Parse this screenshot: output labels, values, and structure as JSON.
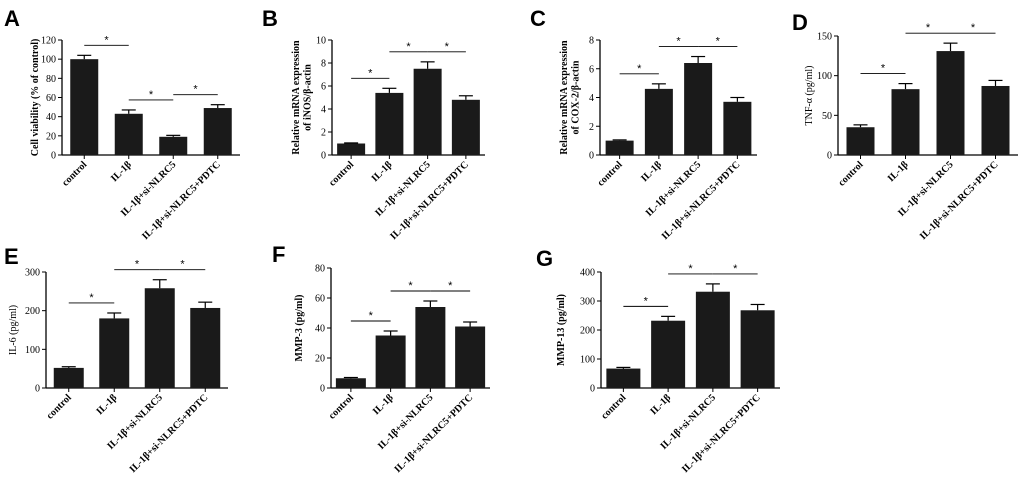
{
  "chart_data": [
    {
      "panel": "A",
      "type": "bar",
      "ylabel": "Cell viability (% of control)",
      "categories": [
        "control",
        "IL-1β",
        "IL-1β+si-NLRC5",
        "IL-1β+si-NLRC5+PDTC"
      ],
      "values": [
        100,
        43,
        19,
        49
      ],
      "errors": [
        4,
        4,
        1.5,
        3.5
      ],
      "ylim": [
        0,
        120
      ],
      "ticks": [
        0,
        20,
        40,
        60,
        80,
        100,
        120
      ],
      "significance": [
        {
          "from": 0,
          "to": 1,
          "label": "*"
        },
        {
          "from": 1,
          "to": 2,
          "label": "*"
        },
        {
          "from": 2,
          "to": 3,
          "label": "*"
        }
      ]
    },
    {
      "panel": "B",
      "type": "bar",
      "ylabel": "Relative mRNA expression of iNOS/β-actin",
      "categories": [
        "control",
        "IL-1β",
        "IL-1β+si-NLRC5",
        "IL-1β+si-NLRC5+PDTC"
      ],
      "values": [
        1,
        5.4,
        7.5,
        4.8
      ],
      "errors": [
        0.05,
        0.4,
        0.6,
        0.35
      ],
      "ylim": [
        0,
        10
      ],
      "ticks": [
        0,
        2,
        4,
        6,
        8,
        10
      ],
      "significance": [
        {
          "from": 0,
          "to": 1,
          "label": "*"
        },
        {
          "from": 1,
          "to": 2,
          "label": "*"
        },
        {
          "from": 2,
          "to": 3,
          "label": "*"
        }
      ]
    },
    {
      "panel": "C",
      "type": "bar",
      "ylabel": "Relative mRNA expression of COX-2/β-actin",
      "categories": [
        "control",
        "IL-1β",
        "IL-1β+si-NLRC5",
        "IL-1β+si-NLRC5+PDTC"
      ],
      "values": [
        1,
        4.6,
        6.4,
        3.7
      ],
      "errors": [
        0.05,
        0.35,
        0.45,
        0.3
      ],
      "ylim": [
        0,
        8
      ],
      "ticks": [
        0,
        2,
        4,
        6,
        8
      ],
      "significance": [
        {
          "from": 0,
          "to": 1,
          "label": "*"
        },
        {
          "from": 1,
          "to": 2,
          "label": "*"
        },
        {
          "from": 2,
          "to": 3,
          "label": "*"
        }
      ]
    },
    {
      "panel": "D",
      "type": "bar",
      "ylabel": "TNF-α (pg/ml)",
      "categories": [
        "control",
        "IL-1β",
        "IL-1β+si-NLRC5",
        "IL-1β+si-NLRC5+PDTC"
      ],
      "values": [
        35,
        83,
        131,
        87
      ],
      "errors": [
        3,
        7,
        10,
        7
      ],
      "ylim": [
        0,
        150
      ],
      "ticks": [
        0,
        50,
        100,
        150
      ],
      "significance": [
        {
          "from": 0,
          "to": 1,
          "label": "*"
        },
        {
          "from": 1,
          "to": 2,
          "label": "*"
        },
        {
          "from": 2,
          "to": 3,
          "label": "*"
        }
      ]
    },
    {
      "panel": "E",
      "type": "bar",
      "ylabel": "IL-6 (pg/ml)",
      "categories": [
        "control",
        "IL-1β",
        "IL-1β+si-NLRC5",
        "IL-1β+si-NLRC5+PDTC"
      ],
      "values": [
        52,
        180,
        258,
        207
      ],
      "errors": [
        3,
        14,
        22,
        15
      ],
      "ylim": [
        0,
        300
      ],
      "ticks": [
        0,
        100,
        200,
        300
      ],
      "significance": [
        {
          "from": 0,
          "to": 1,
          "label": "*"
        },
        {
          "from": 1,
          "to": 2,
          "label": "*"
        },
        {
          "from": 2,
          "to": 3,
          "label": "*"
        }
      ]
    },
    {
      "panel": "F",
      "type": "bar",
      "ylabel": "MMP-3 (pg/ml)",
      "categories": [
        "control",
        "IL-1β",
        "IL-1β+si-NLRC5",
        "IL-1β+si-NLRC5+PDTC"
      ],
      "values": [
        6.5,
        35,
        54,
        41
      ],
      "errors": [
        0.5,
        3,
        4,
        3
      ],
      "ylim": [
        0,
        80
      ],
      "ticks": [
        0,
        20,
        40,
        60,
        80
      ],
      "significance": [
        {
          "from": 0,
          "to": 1,
          "label": "*"
        },
        {
          "from": 1,
          "to": 2,
          "label": "*"
        },
        {
          "from": 2,
          "to": 3,
          "label": "*"
        }
      ]
    },
    {
      "panel": "G",
      "type": "bar",
      "ylabel": "MMP-13 (pg/ml)",
      "categories": [
        "control",
        "IL-1β",
        "IL-1β+si-NLRC5",
        "IL-1β+si-NLRC5+PDTC"
      ],
      "values": [
        67,
        232,
        332,
        268
      ],
      "errors": [
        4,
        15,
        27,
        20
      ],
      "ylim": [
        0,
        400
      ],
      "ticks": [
        0,
        100,
        200,
        300,
        400
      ],
      "significance": [
        {
          "from": 0,
          "to": 1,
          "label": "*"
        },
        {
          "from": 1,
          "to": 2,
          "label": "*"
        },
        {
          "from": 2,
          "to": 3,
          "label": "*"
        }
      ]
    }
  ]
}
